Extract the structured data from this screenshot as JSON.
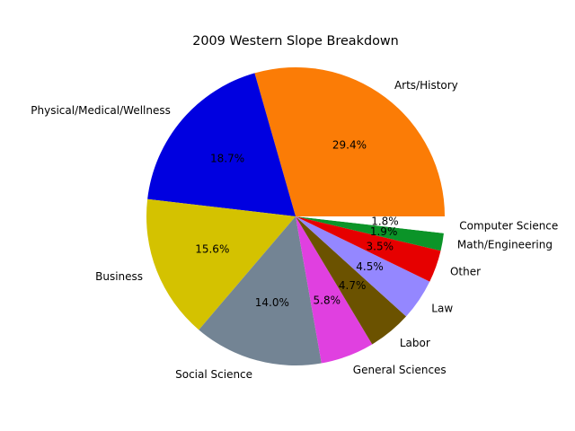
{
  "chart_data": {
    "type": "pie",
    "title": "2009 Western Slope Breakdown",
    "start_angle": 0,
    "direction": "counterclockwise",
    "slices": [
      {
        "label": "Arts/History",
        "value": 29.4,
        "pct_label": "29.4%",
        "color": "#fb7c06"
      },
      {
        "label": "Physical/Medical/Wellness",
        "value": 18.7,
        "pct_label": "18.7%",
        "color": "#0000e0"
      },
      {
        "label": "Business",
        "value": 15.6,
        "pct_label": "15.6%",
        "color": "#d4c200"
      },
      {
        "label": "Social Science",
        "value": 14.0,
        "pct_label": "14.0%",
        "color": "#738494"
      },
      {
        "label": "General Sciences",
        "value": 5.8,
        "pct_label": "5.8%",
        "color": "#e040e0"
      },
      {
        "label": "Labor",
        "value": 4.7,
        "pct_label": "4.7%",
        "color": "#6b5200"
      },
      {
        "label": "Law",
        "value": 4.5,
        "pct_label": "4.5%",
        "color": "#9487ff"
      },
      {
        "label": "Other",
        "value": 3.5,
        "pct_label": "3.5%",
        "color": "#e60000"
      },
      {
        "label": "Math/Engineering",
        "value": 1.9,
        "pct_label": "1.9%",
        "color": "#0b9428"
      },
      {
        "label": "Computer Science",
        "value": 1.8,
        "pct_label": "1.8%",
        "color": "#ffffff"
      }
    ]
  }
}
